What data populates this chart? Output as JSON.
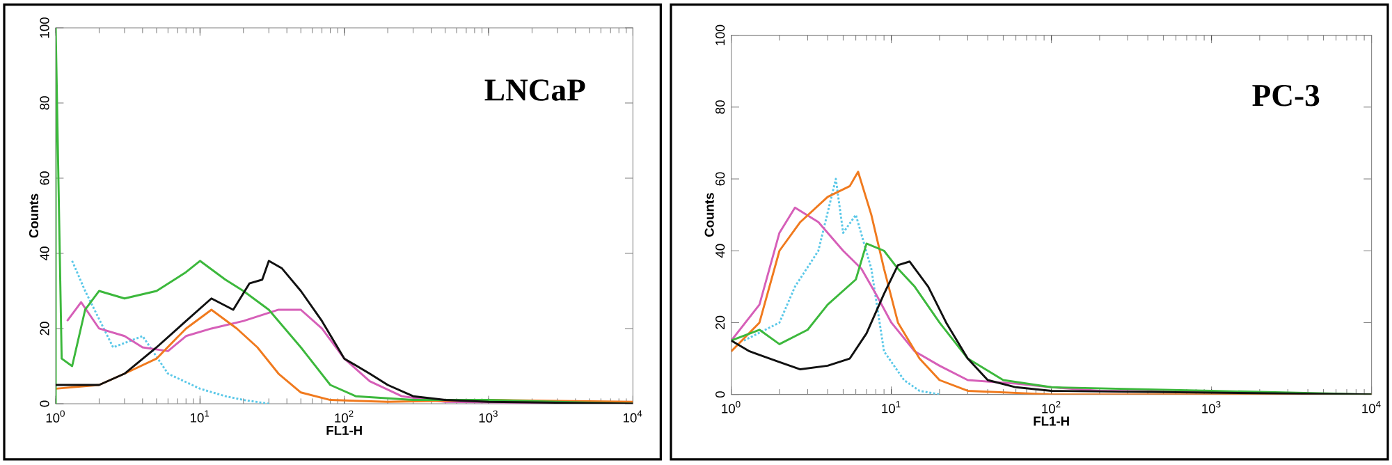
{
  "chart_data": [
    {
      "type": "line",
      "title": "LNCaP",
      "xlabel": "FL1-H",
      "ylabel": "Counts",
      "log": "x",
      "grid": false,
      "xlim": [
        1,
        10000
      ],
      "ylim": [
        0,
        100
      ],
      "xticks": [
        {
          "value": 1,
          "label": "10$^{0}$"
        },
        {
          "value": 10,
          "label": "10$^{1}$"
        },
        {
          "value": 100,
          "label": "10$^{2}$"
        },
        {
          "value": 1000,
          "label": "10$^{3}$"
        },
        {
          "value": 10000,
          "label": "10$^{4}$"
        }
      ],
      "yticks": [
        0,
        20,
        40,
        60,
        80,
        100
      ],
      "series": [
        {
          "color": "#5bc8e8",
          "line_style": "dotted",
          "x": [
            1.3,
            1.6,
            2.5,
            4,
            6,
            10,
            15,
            20,
            30
          ],
          "values": [
            38,
            30,
            15,
            18,
            8,
            4,
            2,
            1,
            0
          ]
        },
        {
          "color": "#d65fb8",
          "x": [
            1.2,
            1.5,
            2,
            3,
            4,
            6,
            8,
            12,
            20,
            35,
            50,
            70,
            100,
            150,
            250,
            500,
            10000
          ],
          "values": [
            22,
            27,
            20,
            18,
            15,
            14,
            18,
            20,
            22,
            25,
            25,
            20,
            12,
            6,
            2,
            0.5,
            0
          ]
        },
        {
          "color": "#f07a1e",
          "x": [
            1,
            2,
            3,
            5,
            8,
            12,
            18,
            25,
            35,
            50,
            80,
            200,
            1000,
            10000
          ],
          "values": [
            4,
            5,
            8,
            12,
            20,
            25,
            20,
            15,
            8,
            3,
            1,
            0.5,
            1,
            0.5
          ]
        },
        {
          "color": "#3cb83c",
          "x": [
            1,
            1,
            1.1,
            1.3,
            1.6,
            2,
            3,
            5,
            8,
            10,
            15,
            20,
            30,
            50,
            80,
            120,
            300,
            1000,
            10000
          ],
          "values": [
            0,
            100,
            12,
            10,
            25,
            30,
            28,
            30,
            35,
            38,
            33,
            30,
            25,
            15,
            5,
            2,
            1,
            1,
            0
          ]
        },
        {
          "color": "#111111",
          "x": [
            1,
            2,
            3,
            5,
            8,
            12,
            17,
            22,
            27,
            30,
            37,
            50,
            70,
            100,
            150,
            200,
            300,
            500,
            1000,
            10000
          ],
          "values": [
            5,
            5,
            8,
            15,
            22,
            28,
            25,
            32,
            33,
            38,
            36,
            30,
            22,
            12,
            8,
            5,
            2,
            1,
            0.5,
            0
          ]
        }
      ]
    },
    {
      "type": "line",
      "title": "PC-3",
      "xlabel": "FL1-H",
      "ylabel": "Counts",
      "log": "x",
      "grid": false,
      "xlim": [
        1,
        10000
      ],
      "ylim": [
        0,
        100
      ],
      "xticks": [
        {
          "value": 1,
          "label": "10$^{0}$"
        },
        {
          "value": 10,
          "label": "10$^{1}$"
        },
        {
          "value": 100,
          "label": "10$^{2}$"
        },
        {
          "value": 1000,
          "label": "10$^{3}$"
        },
        {
          "value": 10000,
          "label": "10$^{4}$"
        }
      ],
      "yticks": [
        0,
        20,
        40,
        60,
        80,
        100
      ],
      "series": [
        {
          "color": "#5bc8e8",
          "line_style": "dotted",
          "x": [
            1.2,
            2,
            2.5,
            3.5,
            4.5,
            5,
            6,
            7.5,
            9,
            12,
            15,
            20
          ],
          "values": [
            15,
            20,
            30,
            40,
            60,
            45,
            50,
            35,
            12,
            4,
            1,
            0
          ]
        },
        {
          "color": "#d65fb8",
          "x": [
            1,
            1.5,
            2,
            2.5,
            3.5,
            5,
            6.5,
            8,
            10,
            14,
            20,
            30,
            60,
            100,
            200,
            10000
          ],
          "values": [
            15,
            25,
            45,
            52,
            48,
            40,
            35,
            28,
            20,
            12,
            8,
            4,
            3,
            2,
            1,
            0
          ]
        },
        {
          "color": "#f07a1e",
          "x": [
            1,
            1.5,
            2,
            2.7,
            4,
            5.5,
            6.2,
            7.5,
            9,
            11,
            15,
            20,
            30,
            100,
            10000
          ],
          "values": [
            12,
            20,
            40,
            48,
            55,
            58,
            62,
            50,
            35,
            20,
            10,
            4,
            1,
            0,
            0
          ]
        },
        {
          "color": "#3cb83c",
          "x": [
            1,
            1.5,
            2,
            3,
            4,
            6,
            7,
            9,
            11,
            14,
            20,
            30,
            50,
            100,
            1000,
            10000
          ],
          "values": [
            15,
            18,
            14,
            18,
            25,
            32,
            42,
            40,
            35,
            30,
            20,
            10,
            4,
            2,
            1,
            0
          ]
        },
        {
          "color": "#111111",
          "x": [
            1,
            1.3,
            2,
            2.7,
            4,
            5.5,
            7,
            9,
            11,
            13,
            17,
            22,
            30,
            40,
            60,
            100,
            1000,
            10000
          ],
          "values": [
            15,
            12,
            9,
            7,
            8,
            10,
            17,
            28,
            36,
            37,
            30,
            20,
            10,
            4,
            2,
            1,
            0.5,
            0
          ]
        }
      ]
    }
  ]
}
